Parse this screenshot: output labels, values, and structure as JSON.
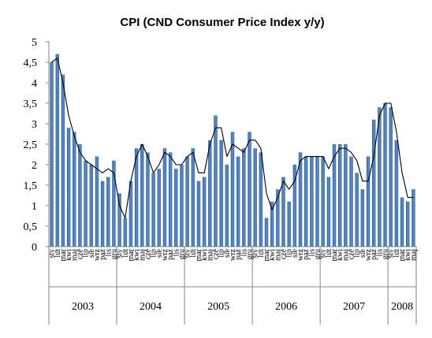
{
  "chart_data": {
    "type": "bar",
    "title": "CPI (CND Consumer Price Index y/y)",
    "xlabel": "",
    "ylabel": "",
    "ylim": [
      0,
      5
    ],
    "yticks": [
      "0",
      "0,5",
      "1",
      "1,5",
      "2",
      "2,5",
      "3",
      "3,5",
      "4",
      "4,5",
      "5"
    ],
    "grid": false,
    "legend": "none",
    "month_labels": [
      "sty",
      "lut",
      "mar",
      "kwi",
      "maj",
      "cze",
      "lip",
      "sie",
      "wrz",
      "paź",
      "lis",
      "gru"
    ],
    "years": [
      "2003",
      "2004",
      "2005",
      "2006",
      "2007",
      "2008"
    ],
    "series": [
      {
        "kind": "bar",
        "values": [
          4.5,
          4.7,
          4.2,
          2.9,
          2.8,
          2.5,
          2.1,
          2.0,
          2.2,
          1.6,
          1.7,
          2.1,
          1.3,
          0.7,
          1.6,
          2.4,
          2.5,
          2.3,
          1.8,
          1.9,
          2.4,
          2.3,
          1.9,
          2.0,
          2.2,
          2.4,
          1.6,
          1.7,
          2.6,
          3.2,
          2.6,
          2.0,
          2.8,
          2.2,
          2.4,
          2.8,
          2.4,
          2.3,
          0.7,
          1.1,
          1.4,
          1.7,
          1.1,
          2.0,
          2.3,
          2.2,
          2.2,
          2.2,
          2.2,
          1.7,
          2.5,
          2.5,
          2.5,
          2.2,
          1.8,
          1.4,
          2.2,
          3.1,
          3.4,
          3.5,
          3.4,
          2.6,
          1.2,
          1.1,
          1.4
        ],
        "color": "#4a7ebb"
      },
      {
        "kind": "line",
        "values": [
          4.5,
          4.6,
          4.0,
          3.2,
          2.7,
          2.3,
          2.1,
          2.0,
          1.9,
          1.8,
          1.9,
          1.8,
          1.0,
          0.7,
          1.6,
          2.2,
          2.5,
          2.2,
          1.8,
          2.0,
          2.3,
          2.2,
          2.0,
          2.0,
          2.2,
          2.3,
          1.8,
          1.8,
          2.5,
          2.9,
          2.9,
          2.2,
          2.5,
          2.4,
          2.3,
          2.6,
          2.6,
          2.4,
          1.3,
          0.9,
          1.2,
          1.6,
          1.4,
          1.6,
          2.1,
          2.2,
          2.2,
          2.2,
          2.2,
          1.9,
          2.2,
          2.4,
          2.4,
          2.3,
          2.1,
          1.6,
          1.6,
          2.2,
          3.2,
          3.5,
          3.5,
          2.8,
          1.8,
          1.2,
          1.2
        ],
        "color": "#000000"
      }
    ]
  }
}
